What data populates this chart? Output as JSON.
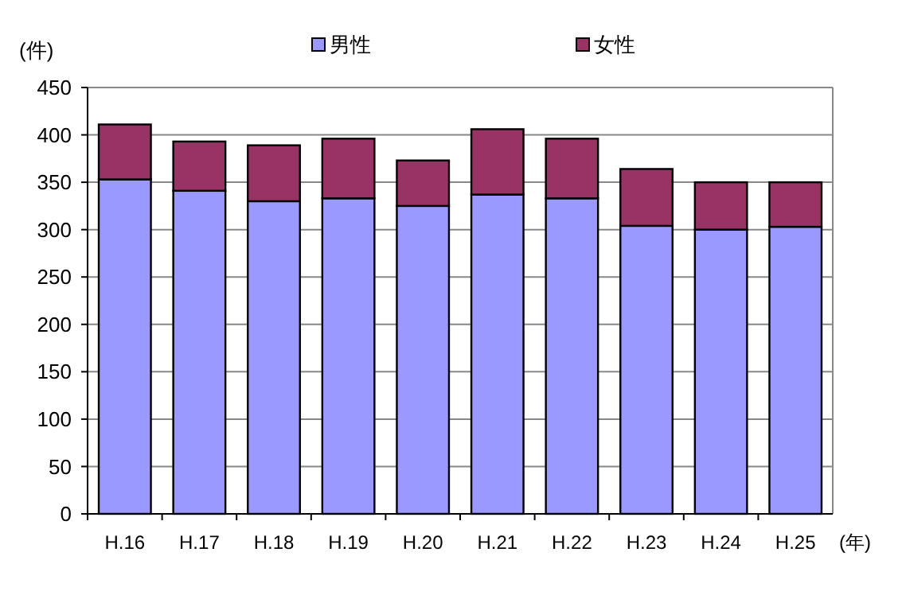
{
  "chart_data": {
    "type": "bar",
    "stacked": true,
    "ylabel": "(件)",
    "xlabel": "(年)",
    "categories": [
      "H.16",
      "H.17",
      "H.18",
      "H.19",
      "H.20",
      "H.21",
      "H.22",
      "H.23",
      "H.24",
      "H.25"
    ],
    "series": [
      {
        "name": "男性",
        "color": "#9999ff",
        "values": [
          353,
          341,
          330,
          333,
          325,
          337,
          333,
          304,
          300,
          303
        ]
      },
      {
        "name": "女性",
        "color": "#993366",
        "values": [
          58,
          52,
          59,
          63,
          48,
          69,
          63,
          60,
          50,
          47
        ]
      }
    ],
    "ylim": [
      0,
      450
    ],
    "yticks": [
      0,
      50,
      100,
      150,
      200,
      250,
      300,
      350,
      400,
      450
    ],
    "grid": "y",
    "legend": "top"
  }
}
